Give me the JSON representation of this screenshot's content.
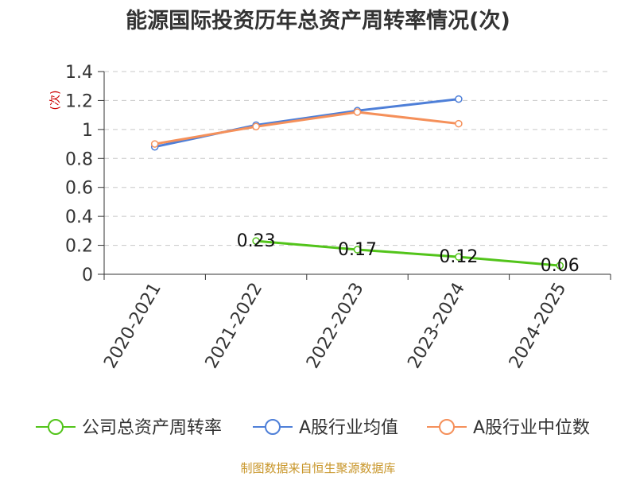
{
  "chart_data": {
    "type": "line",
    "title": "能源国际投资历年总资产周转率情况(次)",
    "ylabel": "(次)",
    "xlabel": "",
    "categories": [
      "2020-2021",
      "2021-2022",
      "2022-2023",
      "2023-2024",
      "2024-2025"
    ],
    "ylim": [
      0,
      1.4
    ],
    "yticks": [
      "0",
      "0.2",
      "0.4",
      "0.6",
      "0.8",
      "1",
      "1.2",
      "1.4"
    ],
    "grid": true,
    "legend": "bottom",
    "series": [
      {
        "name": "公司总资产周转率",
        "color": "#52c41a",
        "values": [
          null,
          0.23,
          0.17,
          0.12,
          0.06
        ],
        "labels": [
          null,
          "0.23",
          "0.17",
          "0.12",
          "0.06"
        ]
      },
      {
        "name": "A股行业均值",
        "color": "#4e7fd8",
        "values": [
          0.88,
          1.03,
          1.13,
          1.21,
          null
        ]
      },
      {
        "name": "A股行业中位数",
        "color": "#f5905a",
        "values": [
          0.9,
          1.02,
          1.12,
          1.04,
          null
        ]
      }
    ]
  },
  "source": "制图数据来自恒生聚源数据库"
}
